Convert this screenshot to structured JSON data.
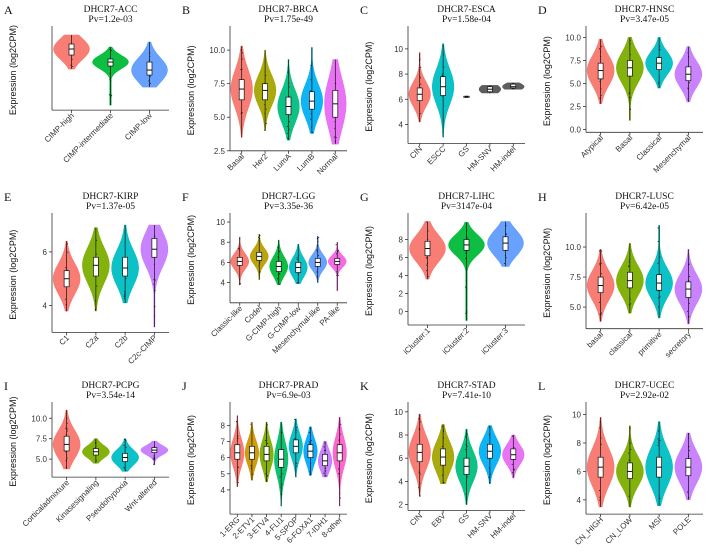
{
  "figure": {
    "description_free": true
  },
  "chart_data": [
    {
      "letter": "A",
      "type": "violin",
      "title": "DHCR7-ACC",
      "pvalue": "Pv=1.2e-03",
      "ylabel": "Expression (log2CPM)",
      "ylim": [
        3.5,
        11.5
      ],
      "yticks": [],
      "categories": [
        "CIMP-high",
        "CIMP-intermediate",
        "CIMP-low"
      ],
      "colors": [
        "#F8766D",
        "#00BA38",
        "#619CFF"
      ],
      "series": [
        {
          "median": 9.6,
          "q1": 9.0,
          "q3": 10.1,
          "min": 7.6,
          "max": 11.0
        },
        {
          "median": 8.3,
          "q1": 7.9,
          "q3": 8.6,
          "min": 4.0,
          "max": 9.8
        },
        {
          "median": 7.5,
          "q1": 7.0,
          "q3": 8.3,
          "min": 5.8,
          "max": 10.3
        }
      ]
    },
    {
      "letter": "B",
      "type": "violin",
      "title": "DHCR7-BRCA",
      "pvalue": "Pv=1.75e-49",
      "ylabel": "Expression (log2CPM)",
      "ylim": [
        2.5,
        11.5
      ],
      "yticks": [
        2.5,
        5.0,
        7.5,
        10.0
      ],
      "tick_decimals": 1,
      "categories": [
        "Basal",
        "Her2",
        "LumA",
        "LumB",
        "Normal"
      ],
      "colors": [
        "#F8766D",
        "#A3A500",
        "#00BF7D",
        "#00B0F6",
        "#E76BF3"
      ],
      "series": [
        {
          "median": 7.1,
          "q1": 6.3,
          "q3": 7.8,
          "min": 3.5,
          "max": 10.3
        },
        {
          "median": 7.0,
          "q1": 6.3,
          "q3": 7.5,
          "min": 4.0,
          "max": 10.0
        },
        {
          "median": 5.8,
          "q1": 5.2,
          "q3": 6.5,
          "min": 3.3,
          "max": 9.3
        },
        {
          "median": 6.2,
          "q1": 5.6,
          "q3": 6.9,
          "min": 3.8,
          "max": 10.2
        },
        {
          "median": 6.0,
          "q1": 5.0,
          "q3": 7.0,
          "min": 3.0,
          "max": 9.3
        }
      ]
    },
    {
      "letter": "C",
      "type": "violin",
      "title": "DHCR7-ESCA",
      "pvalue": "Pv=1.58e-04",
      "ylabel": "Expression (log2CPM)",
      "ylim": [
        2.5,
        11.5
      ],
      "yticks": [
        4,
        6,
        8,
        10
      ],
      "tick_decimals": 0,
      "categories": [
        "CIN",
        "ESCC",
        "GS",
        "HM-SNV",
        "HM-indel"
      ],
      "colors": [
        "#F8766D",
        "#00BFC4",
        "#555555",
        "#555555",
        "#555555"
      ],
      "series": [
        {
          "median": 6.4,
          "q1": 5.9,
          "q3": 6.9,
          "min": 4.2,
          "max": 9.7
        },
        {
          "median": 7.0,
          "q1": 6.3,
          "q3": 7.8,
          "min": 3.0,
          "max": 10.4
        },
        {
          "median": 6.2,
          "q1": 6.15,
          "q3": 6.25,
          "min": 6.15,
          "max": 6.25
        },
        {
          "median": 6.8,
          "q1": 6.6,
          "q3": 7.0,
          "min": 6.5,
          "max": 7.1
        },
        {
          "median": 7.0,
          "q1": 6.9,
          "q3": 7.2,
          "min": 6.8,
          "max": 7.3
        }
      ]
    },
    {
      "letter": "D",
      "type": "violin",
      "title": "DHCR7-HNSC",
      "pvalue": "Pv=3.47e-05",
      "ylabel": "Expression (log2CPM)",
      "ylim": [
        -0.3,
        10.8
      ],
      "yticks": [
        0.0,
        2.5,
        5.0,
        7.5,
        10.0
      ],
      "tick_decimals": 1,
      "categories": [
        "Atypical",
        "Basal",
        "Classical",
        "Mesenchymal"
      ],
      "colors": [
        "#F8766D",
        "#7CAE00",
        "#00BFC4",
        "#C77CFF"
      ],
      "series": [
        {
          "median": 6.4,
          "q1": 5.5,
          "q3": 7.2,
          "min": 2.8,
          "max": 9.8
        },
        {
          "median": 6.7,
          "q1": 5.8,
          "q3": 7.5,
          "min": 1.0,
          "max": 10.0
        },
        {
          "median": 7.2,
          "q1": 6.5,
          "q3": 7.8,
          "min": 4.5,
          "max": 10.0
        },
        {
          "median": 6.0,
          "q1": 5.3,
          "q3": 6.8,
          "min": 3.0,
          "max": 9.0
        }
      ]
    },
    {
      "letter": "E",
      "type": "violin",
      "title": "DHCR7-KIRP",
      "pvalue": "Pv=1.37e-05",
      "ylabel": "Expression (log2CPM)",
      "ylim": [
        3.0,
        7.3
      ],
      "yticks": [
        4,
        6
      ],
      "tick_decimals": 0,
      "categories": [
        "C1",
        "C2a",
        "C2b",
        "C2c-CIMP"
      ],
      "colors": [
        "#F8766D",
        "#7CAE00",
        "#00BFC4",
        "#C77CFF"
      ],
      "series": [
        {
          "median": 5.0,
          "q1": 4.7,
          "q3": 5.3,
          "min": 3.8,
          "max": 6.4
        },
        {
          "median": 5.5,
          "q1": 5.1,
          "q3": 5.8,
          "min": 3.8,
          "max": 6.9
        },
        {
          "median": 5.4,
          "q1": 5.1,
          "q3": 5.8,
          "min": 4.1,
          "max": 7.0
        },
        {
          "median": 6.1,
          "q1": 5.8,
          "q3": 6.5,
          "min": 3.2,
          "max": 7.0
        }
      ]
    },
    {
      "letter": "F",
      "type": "violin",
      "title": "DHCR7-LGG",
      "pvalue": "Pv=3.35e-36",
      "ylabel": "Expression (log2CPM)",
      "ylim": [
        2.0,
        10.5
      ],
      "yticks": [
        4,
        6,
        8,
        10
      ],
      "tick_decimals": 0,
      "categories": [
        "Classic-like",
        "Codel",
        "G-CIMP-high",
        "G-CIMP-low",
        "Mesenchymal-like",
        "PA-like"
      ],
      "colors": [
        "#F8766D",
        "#B79F00",
        "#00BA38",
        "#00BFC4",
        "#619CFF",
        "#F564E3"
      ],
      "series": [
        {
          "median": 6.1,
          "q1": 5.7,
          "q3": 6.5,
          "min": 3.8,
          "max": 8.5
        },
        {
          "median": 6.6,
          "q1": 6.2,
          "q3": 7.0,
          "min": 4.3,
          "max": 8.8
        },
        {
          "median": 5.6,
          "q1": 5.1,
          "q3": 6.1,
          "min": 3.8,
          "max": 8.2
        },
        {
          "median": 5.5,
          "q1": 5.0,
          "q3": 6.0,
          "min": 3.9,
          "max": 7.8
        },
        {
          "median": 6.0,
          "q1": 5.6,
          "q3": 6.4,
          "min": 4.0,
          "max": 8.6
        },
        {
          "median": 6.1,
          "q1": 5.8,
          "q3": 6.4,
          "min": 3.2,
          "max": 8.0
        }
      ]
    },
    {
      "letter": "G",
      "type": "violin",
      "title": "DHCR7-LIHC",
      "pvalue": "Pv=3147e-04",
      "ylabel": "Expression (log2CPM)",
      "ylim": [
        -1.5,
        10.5
      ],
      "yticks": [
        0,
        2,
        4,
        6,
        8
      ],
      "tick_decimals": 0,
      "categories": [
        "iCluster:1",
        "iCluster:2",
        "iCluster:3"
      ],
      "colors": [
        "#F8766D",
        "#00BA38",
        "#619CFF"
      ],
      "series": [
        {
          "median": 7.0,
          "q1": 6.2,
          "q3": 7.8,
          "min": 3.6,
          "max": 10.0
        },
        {
          "median": 7.4,
          "q1": 6.8,
          "q3": 8.0,
          "min": -1.0,
          "max": 9.9
        },
        {
          "median": 7.6,
          "q1": 6.8,
          "q3": 8.3,
          "min": 5.0,
          "max": 10.0
        }
      ]
    },
    {
      "letter": "H",
      "type": "violin",
      "title": "DHCR7-LUSC",
      "pvalue": "Pv=6.42e-05",
      "ylabel": "Expression (log2CPM)",
      "ylim": [
        3.2,
        12.5
      ],
      "yticks": [
        5.0,
        7.5,
        10.0
      ],
      "tick_decimals": 1,
      "categories": [
        "basal",
        "classical",
        "primitive",
        "secretory"
      ],
      "colors": [
        "#F8766D",
        "#7CAE00",
        "#00BFC4",
        "#C77CFF"
      ],
      "series": [
        {
          "median": 6.8,
          "q1": 6.2,
          "q3": 7.5,
          "min": 3.8,
          "max": 9.8
        },
        {
          "median": 7.2,
          "q1": 6.6,
          "q3": 7.9,
          "min": 4.5,
          "max": 10.3
        },
        {
          "median": 7.0,
          "q1": 6.4,
          "q3": 7.7,
          "min": 4.1,
          "max": 11.8
        },
        {
          "median": 6.5,
          "q1": 5.8,
          "q3": 7.1,
          "min": 3.6,
          "max": 9.8
        }
      ]
    },
    {
      "letter": "I",
      "type": "violin",
      "title": "DHCR7-PCPG",
      "pvalue": "Pv=3.54e-14",
      "ylabel": "Expression (log2CPM)",
      "ylim": [
        2.8,
        11.5
      ],
      "yticks": [
        5.0,
        7.5,
        10.0
      ],
      "tick_decimals": 1,
      "categories": [
        "Corticaladmixture",
        "Kinasesignaling",
        "Pseudohypoxia",
        "Wnt-altered"
      ],
      "colors": [
        "#F8766D",
        "#7CAE00",
        "#00BFC4",
        "#C77CFF"
      ],
      "series": [
        {
          "median": 6.8,
          "q1": 6.0,
          "q3": 7.8,
          "min": 3.8,
          "max": 11.0
        },
        {
          "median": 5.9,
          "q1": 5.5,
          "q3": 6.3,
          "min": 4.5,
          "max": 7.5
        },
        {
          "median": 5.2,
          "q1": 4.7,
          "q3": 5.7,
          "min": 3.5,
          "max": 7.5
        },
        {
          "median": 6.1,
          "q1": 5.8,
          "q3": 6.4,
          "min": 4.3,
          "max": 7.2
        }
      ]
    },
    {
      "letter": "J",
      "type": "violin",
      "title": "DHCR7-PRAD",
      "pvalue": "Pv=6.9e-03",
      "ylabel": "Expression (log2CPM)",
      "ylim": [
        2.5,
        9.2
      ],
      "yticks": [
        4,
        5,
        6,
        7,
        8
      ],
      "tick_decimals": 0,
      "categories": [
        "1-ERG",
        "2-ETV1",
        "3-ETV4",
        "4-FLI1",
        "5-SPOP",
        "6-FOXA1",
        "7-IDH1",
        "8-other"
      ],
      "colors": [
        "#F8766D",
        "#CD9600",
        "#7CAE00",
        "#00BE67",
        "#00BFC4",
        "#00A9FF",
        "#C77CFF",
        "#FF61CC"
      ],
      "series": [
        {
          "median": 6.3,
          "q1": 5.9,
          "q3": 6.8,
          "min": 4.2,
          "max": 8.6
        },
        {
          "median": 6.3,
          "q1": 5.9,
          "q3": 6.7,
          "min": 4.6,
          "max": 8.2
        },
        {
          "median": 6.2,
          "q1": 5.8,
          "q3": 6.7,
          "min": 4.5,
          "max": 8.2
        },
        {
          "median": 5.9,
          "q1": 5.4,
          "q3": 6.5,
          "min": 3.0,
          "max": 8.2
        },
        {
          "median": 6.7,
          "q1": 6.3,
          "q3": 7.1,
          "min": 4.8,
          "max": 8.4
        },
        {
          "median": 6.4,
          "q1": 6.0,
          "q3": 6.8,
          "min": 4.9,
          "max": 7.9
        },
        {
          "median": 5.8,
          "q1": 5.5,
          "q3": 6.2,
          "min": 4.8,
          "max": 7.0
        },
        {
          "median": 6.3,
          "q1": 5.8,
          "q3": 6.8,
          "min": 3.0,
          "max": 8.5
        }
      ]
    },
    {
      "letter": "K",
      "type": "violin",
      "title": "DHCR7-STAD",
      "pvalue": "Pv=7.41e-10",
      "ylabel": "Expression (log2CPM)",
      "ylim": [
        1.5,
        10.5
      ],
      "yticks": [
        2,
        4,
        6,
        8,
        10
      ],
      "tick_decimals": 0,
      "categories": [
        "CIN",
        "EBV",
        "GS",
        "HM-SNV",
        "HM-indel"
      ],
      "colors": [
        "#F8766D",
        "#A3A500",
        "#00BF7D",
        "#00B0F6",
        "#E76BF3"
      ],
      "series": [
        {
          "median": 6.5,
          "q1": 5.7,
          "q3": 7.2,
          "min": 2.7,
          "max": 9.8
        },
        {
          "median": 6.1,
          "q1": 5.4,
          "q3": 6.8,
          "min": 3.8,
          "max": 8.9
        },
        {
          "median": 5.3,
          "q1": 4.6,
          "q3": 6.0,
          "min": 2.0,
          "max": 8.5
        },
        {
          "median": 6.6,
          "q1": 6.0,
          "q3": 7.2,
          "min": 3.8,
          "max": 8.8
        },
        {
          "median": 6.3,
          "q1": 5.9,
          "q3": 6.8,
          "min": 4.3,
          "max": 8.0
        }
      ]
    },
    {
      "letter": "L",
      "type": "violin",
      "title": "DHCR7-UCEC",
      "pvalue": "Pv=2.92e-02",
      "ylabel": "Expression (log2CPM)",
      "ylim": [
        3.0,
        10.6
      ],
      "yticks": [
        4,
        6,
        8,
        10
      ],
      "tick_decimals": 0,
      "categories": [
        "CN_HIGH",
        "CN_LOW",
        "MSI",
        "POLE"
      ],
      "colors": [
        "#F8766D",
        "#7CAE00",
        "#00BFC4",
        "#C77CFF"
      ],
      "series": [
        {
          "median": 6.3,
          "q1": 5.6,
          "q3": 7.0,
          "min": 3.5,
          "max": 9.8
        },
        {
          "median": 6.0,
          "q1": 5.5,
          "q3": 6.6,
          "min": 3.5,
          "max": 9.2
        },
        {
          "median": 6.3,
          "q1": 5.6,
          "q3": 7.0,
          "min": 3.6,
          "max": 9.5
        },
        {
          "median": 6.3,
          "q1": 5.7,
          "q3": 6.9,
          "min": 4.0,
          "max": 8.7
        }
      ]
    }
  ]
}
